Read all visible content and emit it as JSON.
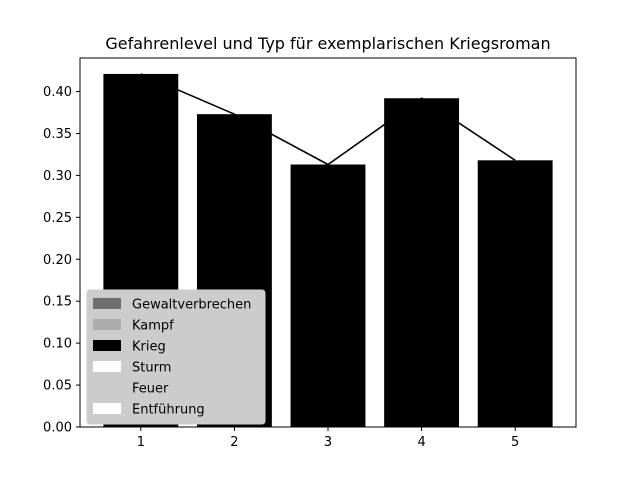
{
  "chart_data": {
    "type": "bar",
    "title": "Gefahrenlevel und Typ für exemplarischen Kriegsroman",
    "xlabel": "",
    "ylabel": "",
    "categories": [
      "1",
      "2",
      "3",
      "4",
      "5"
    ],
    "x": [
      1,
      2,
      3,
      4,
      5
    ],
    "values": [
      0.421,
      0.373,
      0.313,
      0.392,
      0.318
    ],
    "line_values": [
      0.421,
      0.373,
      0.313,
      0.392,
      0.318
    ],
    "bar_color": "#000000",
    "line_color": "#000000",
    "xlim": [
      0.35,
      5.65
    ],
    "ylim": [
      0,
      0.44
    ],
    "yticks": [
      0.0,
      0.05,
      0.1,
      0.15,
      0.2,
      0.25,
      0.3,
      0.35,
      0.4
    ],
    "ytick_labels": [
      "0.00",
      "0.05",
      "0.10",
      "0.15",
      "0.20",
      "0.25",
      "0.30",
      "0.35",
      "0.40"
    ],
    "grid": false,
    "legend": {
      "placement": "lower-left",
      "entries": [
        {
          "label": "Gewaltverbrechen",
          "color": "#6e6e6e"
        },
        {
          "label": "Kampf",
          "color": "#acacac"
        },
        {
          "label": "Krieg",
          "color": "#000000"
        },
        {
          "label": "Sturm",
          "color": "#ffffff"
        },
        {
          "label": "Feuer",
          "color": "#cccccc"
        },
        {
          "label": "Entführung",
          "color": "#ffffff"
        }
      ]
    }
  }
}
